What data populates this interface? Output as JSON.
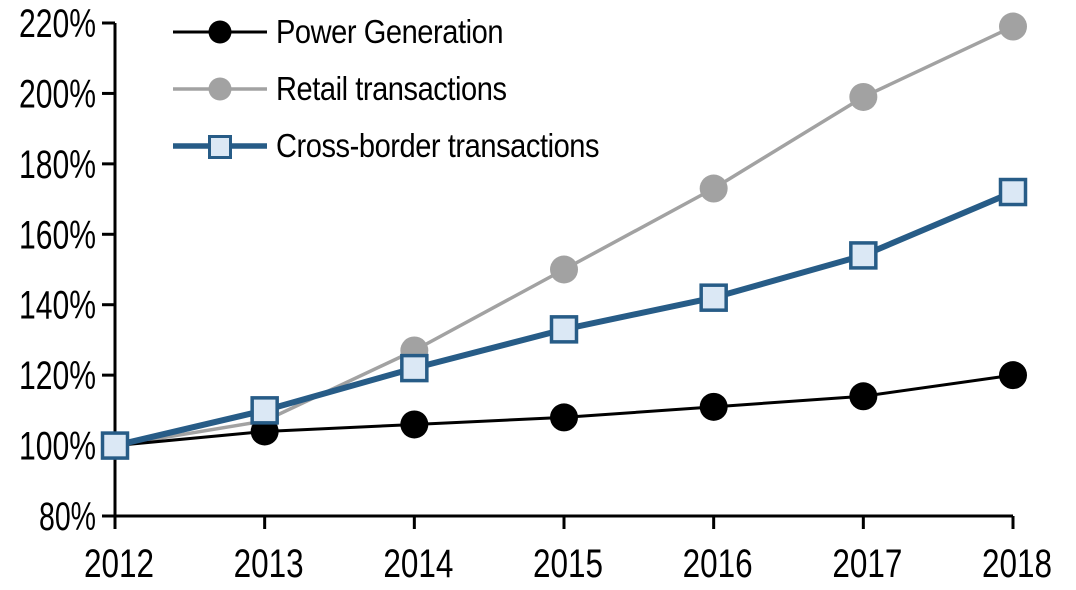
{
  "chart_data": {
    "type": "line",
    "x_labels": [
      "2012",
      "2013",
      "2014",
      "2015",
      "2016",
      "2017",
      "2018"
    ],
    "y_ticks": [
      80,
      100,
      120,
      140,
      160,
      180,
      200,
      220
    ],
    "y_tick_labels": [
      "80%",
      "100%",
      "120%",
      "140%",
      "160%",
      "180%",
      "200%",
      "220%"
    ],
    "ylim": [
      80,
      220
    ],
    "grid": false,
    "legend_position": "top-left",
    "axis_color": "#000000",
    "series": [
      {
        "name": "Power Generation",
        "values": [
          100,
          104,
          106,
          108,
          111,
          114,
          120
        ],
        "color": "#000000",
        "marker": "circle",
        "marker_fill": "#000000",
        "line_width": 3
      },
      {
        "name": "Retail transactions",
        "values": [
          100,
          107,
          127,
          150,
          173,
          199,
          219
        ],
        "color": "#A2A2A2",
        "marker": "circle",
        "marker_fill": "#A2A2A2",
        "line_width": 3.5
      },
      {
        "name": "Cross-border transactions",
        "values": [
          100,
          110,
          122,
          133,
          142,
          154,
          172
        ],
        "color": "#275C87",
        "marker": "square",
        "marker_fill": "#DBE8F5",
        "line_width": 6
      }
    ]
  }
}
